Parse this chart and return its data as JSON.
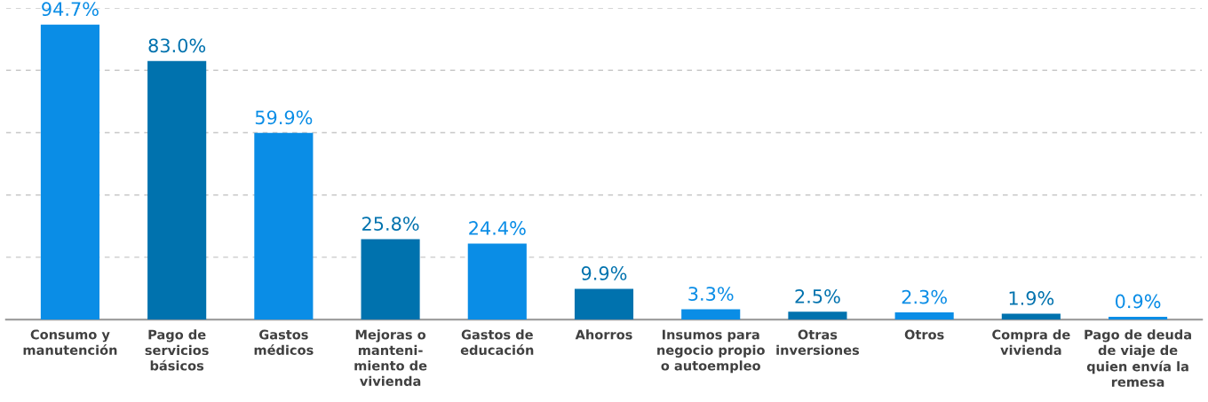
{
  "chart_data": {
    "type": "bar",
    "categories": [
      "Consumo y\nmanutención",
      "Pago de\nservicios\nbásicos",
      "Gastos\nmédicos",
      "Mejoras o\nmanteni-\nmiento de\nvivienda",
      "Gastos de\neducación",
      "Ahorros",
      "Insumos para\nnegocio propio\no autoempleo",
      "Otras\ninversiones",
      "Otros",
      "Compra de\nvivienda",
      "Pago de deuda\nde viaje de\nquien envía la\nremesa"
    ],
    "values": [
      94.7,
      83.0,
      59.9,
      25.8,
      24.4,
      9.9,
      3.3,
      2.5,
      2.3,
      1.9,
      0.9
    ],
    "value_labels": [
      "94.7%",
      "83.0%",
      "59.9%",
      "25.8%",
      "24.4%",
      "9.9%",
      "3.3%",
      "2.5%",
      "2.3%",
      "1.9%",
      "0.9%"
    ],
    "colors": [
      "#0a8de6",
      "#0072ae",
      "#0a8de6",
      "#0072ae",
      "#0a8de6",
      "#0072ae",
      "#0a8de6",
      "#0072ae",
      "#0a8de6",
      "#0072ae",
      "#0a8de6"
    ],
    "ylim": [
      0,
      100
    ],
    "yticks": [
      {
        "value": 20,
        "label": null
      },
      {
        "value": 40,
        "label": null
      },
      {
        "value": 60,
        "label": null
      },
      {
        "value": 80,
        "label": null
      },
      {
        "value": 100,
        "label": null
      }
    ],
    "grid": "y",
    "tick_labels": "x"
  }
}
